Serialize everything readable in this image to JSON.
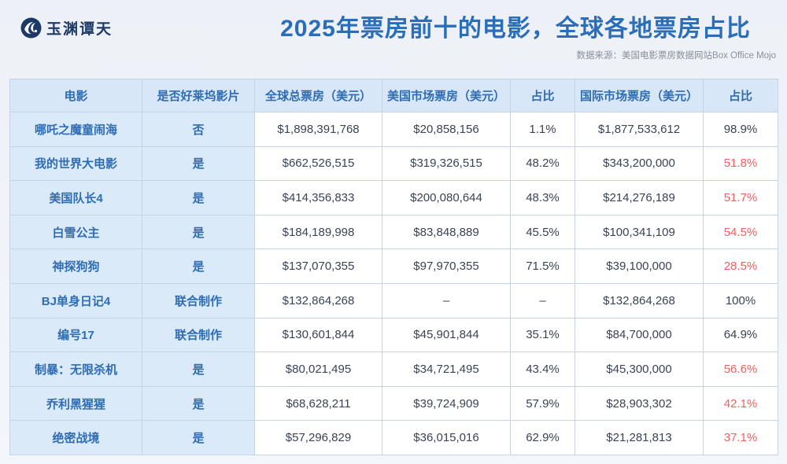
{
  "page": {
    "logo_text": "玉渊谭天"
  },
  "colors": {
    "title_blue": "#2a6db8",
    "table_accent_blue": "#2e6cb3",
    "header_bg": "#d7e7f7",
    "label_cell_bg": "#dbeaf9",
    "value_text": "#3a4254",
    "highlight_red": "#fa5d5d",
    "logo_navy": "#1d3a66"
  },
  "chart_data": {
    "type": "table",
    "title": "2025年票房前十的电影，全球各地票房占比",
    "source": "数据来源：美国电影票房数据网站Box Office Mojo",
    "columns": [
      "电影",
      "是否好莱坞影片",
      "全球总票房（美元）",
      "美国市场票房（美元）",
      "占比",
      "国际市场票房（美元）",
      "占比"
    ],
    "rows": [
      {
        "cells": [
          "哪吒之魔童闹海",
          "否",
          "$1,898,391,768",
          "$20,858,156",
          "1.1%",
          "$1,877,533,612",
          "98.9%"
        ],
        "intl_pct_red": false
      },
      {
        "cells": [
          "我的世界大电影",
          "是",
          "$662,526,515",
          "$319,326,515",
          "48.2%",
          "$343,200,000",
          "51.8%"
        ],
        "intl_pct_red": true
      },
      {
        "cells": [
          "美国队长4",
          "是",
          "$414,356,833",
          "$200,080,644",
          "48.3%",
          "$214,276,189",
          "51.7%"
        ],
        "intl_pct_red": true
      },
      {
        "cells": [
          "白雪公主",
          "是",
          "$184,189,998",
          "$83,848,889",
          "45.5%",
          "$100,341,109",
          "54.5%"
        ],
        "intl_pct_red": true
      },
      {
        "cells": [
          "神探狗狗",
          "是",
          "$137,070,355",
          "$97,970,355",
          "71.5%",
          "$39,100,000",
          "28.5%"
        ],
        "intl_pct_red": true
      },
      {
        "cells": [
          "BJ单身日记4",
          "联合制作",
          "$132,864,268",
          "–",
          "–",
          "$132,864,268",
          "100%"
        ],
        "intl_pct_red": false
      },
      {
        "cells": [
          "编号17",
          "联合制作",
          "$130,601,844",
          "$45,901,844",
          "35.1%",
          "$84,700,000",
          "64.9%"
        ],
        "intl_pct_red": false
      },
      {
        "cells": [
          "制暴：无限杀机",
          "是",
          "$80,021,495",
          "$34,721,495",
          "43.4%",
          "$45,300,000",
          "56.6%"
        ],
        "intl_pct_red": true
      },
      {
        "cells": [
          "乔利黑猩猩",
          "是",
          "$68,628,211",
          "$39,724,909",
          "57.9%",
          "$28,903,302",
          "42.1%"
        ],
        "intl_pct_red": true
      },
      {
        "cells": [
          "绝密战境",
          "是",
          "$57,296,829",
          "$36,015,016",
          "62.9%",
          "$21,281,813",
          "37.1%"
        ],
        "intl_pct_red": true
      }
    ]
  }
}
